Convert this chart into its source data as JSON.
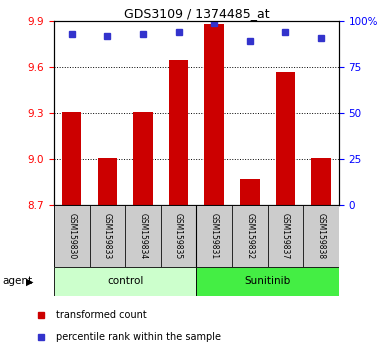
{
  "title": "GDS3109 / 1374485_at",
  "samples": [
    "GSM159830",
    "GSM159833",
    "GSM159834",
    "GSM159835",
    "GSM159831",
    "GSM159832",
    "GSM159837",
    "GSM159838"
  ],
  "transformed_counts": [
    9.31,
    9.01,
    9.31,
    9.65,
    9.88,
    8.87,
    9.57,
    9.01
  ],
  "percentile_ranks": [
    93,
    92,
    93,
    94,
    99,
    89,
    94,
    91
  ],
  "ylim_left": [
    8.7,
    9.9
  ],
  "ylim_right": [
    0,
    100
  ],
  "yticks_left": [
    8.7,
    9.0,
    9.3,
    9.6,
    9.9
  ],
  "yticks_right": [
    0,
    25,
    50,
    75,
    100
  ],
  "bar_color": "#cc0000",
  "dot_color": "#3333cc",
  "control_bg": "#ccffcc",
  "sunitinib_bg": "#44ee44",
  "label_bg": "#cccccc",
  "legend_bar_label": "transformed count",
  "legend_dot_label": "percentile rank within the sample",
  "group_label": "agent",
  "figsize": [
    3.85,
    3.54
  ],
  "dpi": 100
}
